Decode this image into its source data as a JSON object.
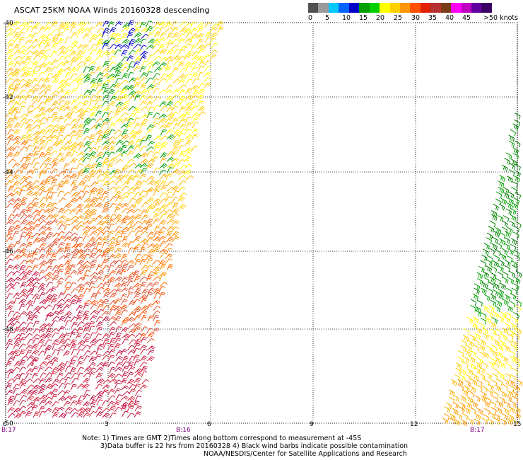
{
  "title": "ASCAT 25KM NOAA Winds 20160328 descending",
  "colorbar": {
    "colors": [
      "#505050",
      "#9a9a9a",
      "#00c8ff",
      "#0064ff",
      "#0000c8",
      "#00a000",
      "#00d000",
      "#ffff00",
      "#ffd000",
      "#ff9600",
      "#ff5000",
      "#e02000",
      "#b43232",
      "#7a3c14",
      "#ff00ff",
      "#c000c0",
      "#6400a0",
      "#3c0064"
    ],
    "labels": [
      "0",
      "5",
      "10",
      "15",
      "20",
      "25",
      "30",
      "35",
      "40",
      "45",
      ">50 knots"
    ]
  },
  "map": {
    "lat_labels": [
      "-40",
      "-42",
      "-44",
      "-46",
      "-48",
      "-50"
    ],
    "lon_labels": [
      "0",
      "3",
      "6",
      "9",
      "12",
      "15"
    ],
    "time_labels": [
      "B:17",
      "B:16",
      "B:17"
    ]
  },
  "notes": {
    "line1": "Note: 1) Times are GMT 2)Times along bottom correspond to measurement at -45S",
    "line2": "3)Data buffer is 22 hrs from 20160328 4) Black wind barbs indicate possible contamination",
    "line3": "NOAA/NESDIS/Center for Satellite Applications and Research"
  }
}
